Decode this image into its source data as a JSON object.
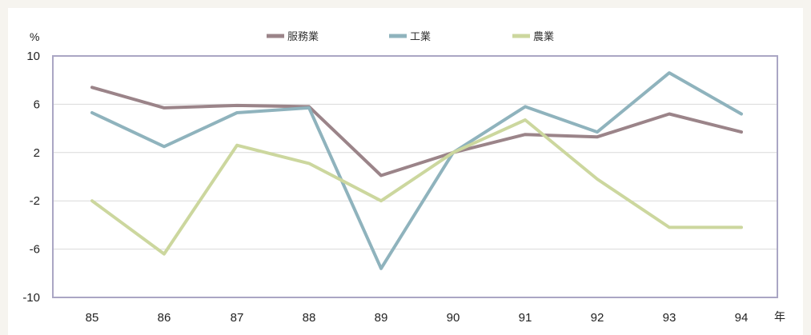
{
  "chart_data": {
    "type": "line",
    "ylabel": "%",
    "xlabel": "年",
    "categories": [
      "85",
      "86",
      "87",
      "88",
      "89",
      "90",
      "91",
      "92",
      "93",
      "94"
    ],
    "yticks": [
      10,
      6,
      2,
      -2,
      -6,
      -10
    ],
    "ylim": [
      -10,
      10
    ],
    "grid": true,
    "legend_position": "top-center",
    "series": [
      {
        "name": "服務業",
        "color": "#9b8489",
        "values": [
          7.4,
          5.7,
          5.9,
          5.8,
          0.1,
          2.0,
          3.5,
          3.3,
          5.2,
          3.7
        ]
      },
      {
        "name": "工業",
        "color": "#8fb3bd",
        "values": [
          5.3,
          2.5,
          5.3,
          5.7,
          -7.6,
          2.0,
          5.8,
          3.7,
          8.6,
          5.2
        ]
      },
      {
        "name": "農業",
        "color": "#ccd79e",
        "values": [
          -2.0,
          -6.4,
          2.6,
          1.1,
          -2.0,
          2.0,
          4.7,
          -0.2,
          -4.2,
          -4.2
        ]
      }
    ]
  }
}
